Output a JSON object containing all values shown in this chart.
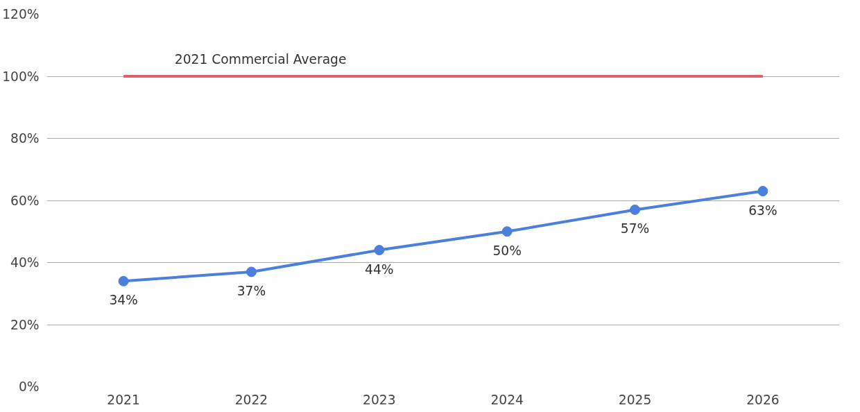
{
  "chart_data": {
    "type": "line",
    "categories": [
      "2021",
      "2022",
      "2023",
      "2024",
      "2025",
      "2026"
    ],
    "series": [
      {
        "color": "#4a7fdb",
        "values": [
          34,
          37,
          44,
          50,
          57,
          63
        ],
        "value_labels": [
          "34%",
          "37%",
          "44%",
          "50%",
          "57%",
          "63%"
        ]
      }
    ],
    "ylim": [
      0,
      120
    ],
    "yticks": [
      {
        "value": 0,
        "label": "0%"
      },
      {
        "value": 20,
        "label": "20%"
      },
      {
        "value": 40,
        "label": "40%"
      },
      {
        "value": 60,
        "label": "60%"
      },
      {
        "value": 80,
        "label": "80%"
      },
      {
        "value": 100,
        "label": "100%"
      },
      {
        "value": 120,
        "label": "120%"
      }
    ],
    "ref_lines": [
      {
        "axis": "y",
        "value": 100,
        "label": "2021 Commercial Average",
        "color": "#e0606a"
      }
    ],
    "grid": "y",
    "marker": "circle",
    "line_style": "solid"
  }
}
